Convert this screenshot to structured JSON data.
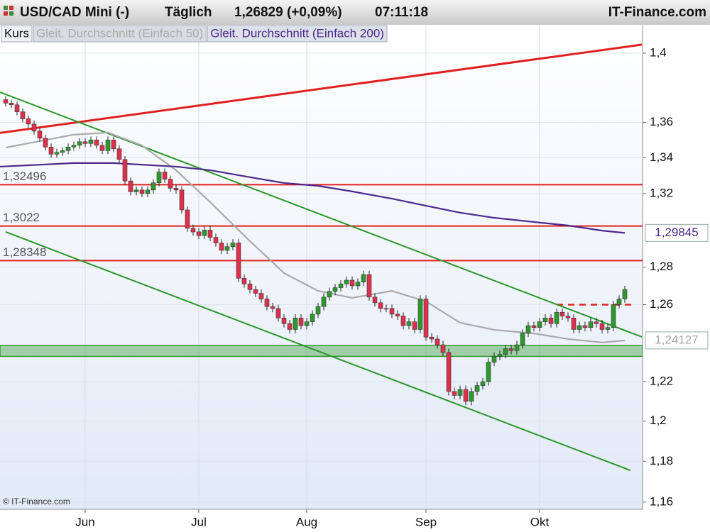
{
  "chart_data": {
    "type": "candlestick",
    "title": "USD/CAD Mini (-)",
    "interval": "Täglich",
    "quote": "1,26829 (+0,09%)",
    "time": "07:11:18",
    "source": "IT-Finance.com",
    "copyright": "© IT-Finance.com",
    "name": "Kurs",
    "up_color": "#2e9a2e",
    "down_color": "#e0304c",
    "log": true,
    "grid": true,
    "ylim": [
      1.1565,
      1.4167
    ],
    "yticks": [
      {
        "value": 1.16,
        "label": "1,16"
      },
      {
        "value": 1.18,
        "label": "1,18"
      },
      {
        "value": 1.2,
        "label": "1,2"
      },
      {
        "value": 1.22,
        "label": "1,22"
      },
      {
        "value": 1.26,
        "label": "1,26"
      },
      {
        "value": 1.28,
        "label": "1,28"
      },
      {
        "value": 1.32,
        "label": "1,32"
      },
      {
        "value": 1.34,
        "label": "1,34"
      },
      {
        "value": 1.36,
        "label": "1,36"
      },
      {
        "value": 1.4,
        "label": "1,4"
      }
    ],
    "categories": [
      null,
      null,
      null,
      null,
      null,
      null,
      null,
      null,
      null,
      null,
      null,
      null,
      null,
      null,
      "Jun",
      null,
      null,
      null,
      null,
      null,
      null,
      null,
      null,
      null,
      null,
      null,
      null,
      null,
      null,
      null,
      null,
      null,
      null,
      null,
      "Jul",
      null,
      null,
      null,
      null,
      null,
      null,
      null,
      null,
      null,
      null,
      null,
      null,
      null,
      null,
      null,
      null,
      null,
      null,
      "Aug",
      null,
      null,
      null,
      null,
      null,
      null,
      null,
      null,
      null,
      null,
      null,
      null,
      null,
      null,
      null,
      null,
      null,
      null,
      null,
      null,
      "Sep",
      null,
      null,
      null,
      null,
      null,
      null,
      null,
      null,
      null,
      null,
      null,
      null,
      null,
      null,
      null,
      null,
      null,
      null,
      null,
      "Okt",
      null,
      null,
      null,
      null,
      null,
      null,
      null,
      null,
      null,
      null,
      null,
      null,
      null,
      null,
      null
    ],
    "open": [
      1.373,
      1.371,
      1.37,
      1.366,
      1.362,
      1.359,
      1.355,
      1.351,
      1.346,
      1.342,
      1.343,
      1.344,
      1.346,
      1.347,
      1.349,
      1.348,
      1.35,
      1.347,
      1.344,
      1.35,
      1.345,
      1.339,
      1.327,
      1.321,
      1.322,
      1.32,
      1.322,
      1.326,
      1.332,
      1.328,
      1.323,
      1.322,
      1.311,
      1.301,
      1.299,
      1.297,
      1.3,
      1.296,
      1.293,
      1.289,
      1.291,
      1.293,
      1.274,
      1.271,
      1.268,
      1.266,
      1.263,
      1.259,
      1.258,
      1.253,
      1.25,
      1.247,
      1.253,
      1.249,
      1.251,
      1.255,
      1.259,
      1.264,
      1.267,
      1.269,
      1.271,
      1.273,
      1.27,
      1.272,
      1.276,
      1.264,
      1.261,
      1.258,
      1.258,
      1.255,
      1.254,
      1.249,
      1.251,
      1.247,
      1.263,
      1.243,
      1.242,
      1.239,
      1.235,
      1.215,
      1.213,
      1.216,
      1.21,
      1.215,
      1.218,
      1.22,
      1.23,
      1.233,
      1.234,
      1.237,
      1.236,
      1.239,
      1.245,
      1.249,
      1.248,
      1.251,
      1.253,
      1.25,
      1.256,
      1.254,
      1.253,
      1.247,
      1.249,
      1.248,
      1.251,
      1.25,
      1.247,
      1.248,
      1.26,
      1.263
    ],
    "high": [
      1.375,
      1.373,
      1.372,
      1.368,
      1.364,
      1.361,
      1.357,
      1.353,
      1.348,
      1.345,
      1.346,
      1.348,
      1.349,
      1.351,
      1.351,
      1.352,
      1.352,
      1.349,
      1.352,
      1.352,
      1.347,
      1.341,
      1.329,
      1.324,
      1.324,
      1.324,
      1.328,
      1.334,
      1.334,
      1.33,
      1.325,
      1.324,
      1.313,
      1.303,
      1.301,
      1.302,
      1.302,
      1.298,
      1.295,
      1.293,
      1.295,
      1.295,
      1.276,
      1.273,
      1.27,
      1.268,
      1.265,
      1.261,
      1.26,
      1.255,
      1.252,
      1.255,
      1.255,
      1.253,
      1.257,
      1.261,
      1.266,
      1.269,
      1.271,
      1.273,
      1.275,
      1.275,
      1.274,
      1.278,
      1.278,
      1.266,
      1.263,
      1.26,
      1.26,
      1.257,
      1.256,
      1.253,
      1.253,
      1.265,
      1.265,
      1.245,
      1.244,
      1.241,
      1.237,
      1.217,
      1.218,
      1.218,
      1.217,
      1.22,
      1.222,
      1.232,
      1.235,
      1.236,
      1.239,
      1.239,
      1.241,
      1.247,
      1.251,
      1.251,
      1.253,
      1.255,
      1.255,
      1.258,
      1.258,
      1.256,
      1.255,
      1.251,
      1.251,
      1.253,
      1.253,
      1.252,
      1.25,
      1.262,
      1.265,
      1.27
    ],
    "low": [
      1.369,
      1.368,
      1.364,
      1.36,
      1.357,
      1.353,
      1.349,
      1.344,
      1.34,
      1.34,
      1.341,
      1.342,
      1.344,
      1.345,
      1.346,
      1.346,
      1.345,
      1.342,
      1.342,
      1.343,
      1.337,
      1.325,
      1.319,
      1.319,
      1.318,
      1.318,
      1.32,
      1.324,
      1.326,
      1.321,
      1.32,
      1.309,
      1.299,
      1.297,
      1.295,
      1.295,
      1.294,
      1.291,
      1.287,
      1.287,
      1.289,
      1.272,
      1.269,
      1.266,
      1.264,
      1.261,
      1.257,
      1.256,
      1.251,
      1.248,
      1.245,
      1.245,
      1.247,
      1.247,
      1.249,
      1.253,
      1.257,
      1.262,
      1.265,
      1.267,
      1.269,
      1.268,
      1.268,
      1.27,
      1.262,
      1.259,
      1.256,
      1.256,
      1.253,
      1.252,
      1.247,
      1.247,
      1.245,
      1.245,
      1.241,
      1.24,
      1.237,
      1.233,
      1.213,
      1.211,
      1.211,
      1.208,
      1.208,
      1.213,
      1.216,
      1.218,
      1.228,
      1.231,
      1.232,
      1.234,
      1.234,
      1.237,
      1.243,
      1.246,
      1.246,
      1.249,
      1.248,
      1.248,
      1.252,
      1.251,
      1.245,
      1.245,
      1.246,
      1.246,
      1.248,
      1.245,
      1.245,
      1.246,
      1.258,
      1.261
    ],
    "close": [
      1.371,
      1.37,
      1.366,
      1.362,
      1.359,
      1.355,
      1.351,
      1.346,
      1.342,
      1.343,
      1.344,
      1.346,
      1.347,
      1.349,
      1.348,
      1.35,
      1.347,
      1.344,
      1.35,
      1.345,
      1.339,
      1.327,
      1.321,
      1.322,
      1.32,
      1.322,
      1.326,
      1.332,
      1.328,
      1.323,
      1.322,
      1.311,
      1.301,
      1.299,
      1.297,
      1.3,
      1.296,
      1.293,
      1.289,
      1.291,
      1.293,
      1.274,
      1.271,
      1.268,
      1.266,
      1.263,
      1.259,
      1.258,
      1.253,
      1.25,
      1.247,
      1.253,
      1.249,
      1.251,
      1.255,
      1.259,
      1.264,
      1.267,
      1.269,
      1.271,
      1.273,
      1.27,
      1.272,
      1.276,
      1.264,
      1.261,
      1.258,
      1.258,
      1.255,
      1.254,
      1.249,
      1.251,
      1.247,
      1.263,
      1.243,
      1.242,
      1.239,
      1.235,
      1.215,
      1.213,
      1.216,
      1.21,
      1.215,
      1.218,
      1.22,
      1.23,
      1.233,
      1.234,
      1.237,
      1.236,
      1.239,
      1.245,
      1.249,
      1.248,
      1.251,
      1.253,
      1.25,
      1.256,
      1.254,
      1.253,
      1.247,
      1.249,
      1.248,
      1.251,
      1.25,
      1.247,
      1.248,
      1.26,
      1.263,
      1.268
    ],
    "overlays": [
      {
        "name": "Gleit. Durchschnitt (Einfach 50)",
        "color": "#a9a9a9",
        "x": [
          0,
          12,
          18,
          24,
          30,
          36,
          43,
          49,
          55,
          61,
          68,
          74,
          80,
          86,
          93,
          99,
          105,
          109
        ],
        "values": [
          1.3457,
          1.353,
          1.3542,
          1.3469,
          1.333,
          1.3153,
          1.294,
          1.2768,
          1.2673,
          1.2636,
          1.2673,
          1.2617,
          1.2505,
          1.2468,
          1.2449,
          1.242,
          1.2402,
          1.24127
        ],
        "end_label": "1,24127"
      },
      {
        "name": "Gleit. Durchschnitt (Einfach 200)",
        "color": "#4b2a8a",
        "x": [
          -1,
          12,
          19,
          30,
          36,
          43,
          49,
          55,
          61,
          68,
          74,
          80,
          86,
          93,
          99,
          105,
          109
        ],
        "values": [
          1.335,
          1.337,
          1.337,
          1.335,
          1.333,
          1.3291,
          1.3259,
          1.3243,
          1.3212,
          1.3172,
          1.3133,
          1.3095,
          1.3067,
          1.3044,
          1.3025,
          1.2997,
          1.29845
        ],
        "end_label": "1,29845"
      }
    ],
    "trendlines": [
      {
        "color": "#e02020",
        "x": [
          -1,
          112
        ],
        "values": [
          1.354,
          1.405
        ]
      },
      {
        "color": "#2c962c",
        "x": [
          -1,
          112
        ],
        "values": [
          1.3773,
          1.2431
        ]
      },
      {
        "color": "#2c962c",
        "x": [
          0,
          110
        ],
        "values": [
          1.299,
          1.1755
        ]
      }
    ],
    "levels": {
      "color": "#e02020",
      "values": [
        1.32496,
        1.3022,
        1.28348
      ],
      "value_labels": [
        "1,32496",
        "1,3022",
        "1,28348"
      ]
    },
    "dashed_level": {
      "color": "#e02020",
      "value": 1.26,
      "x": [
        97,
        111
      ]
    },
    "zone": {
      "color": "#2e9a2e",
      "values": [
        1.233,
        1.2386
      ]
    }
  }
}
